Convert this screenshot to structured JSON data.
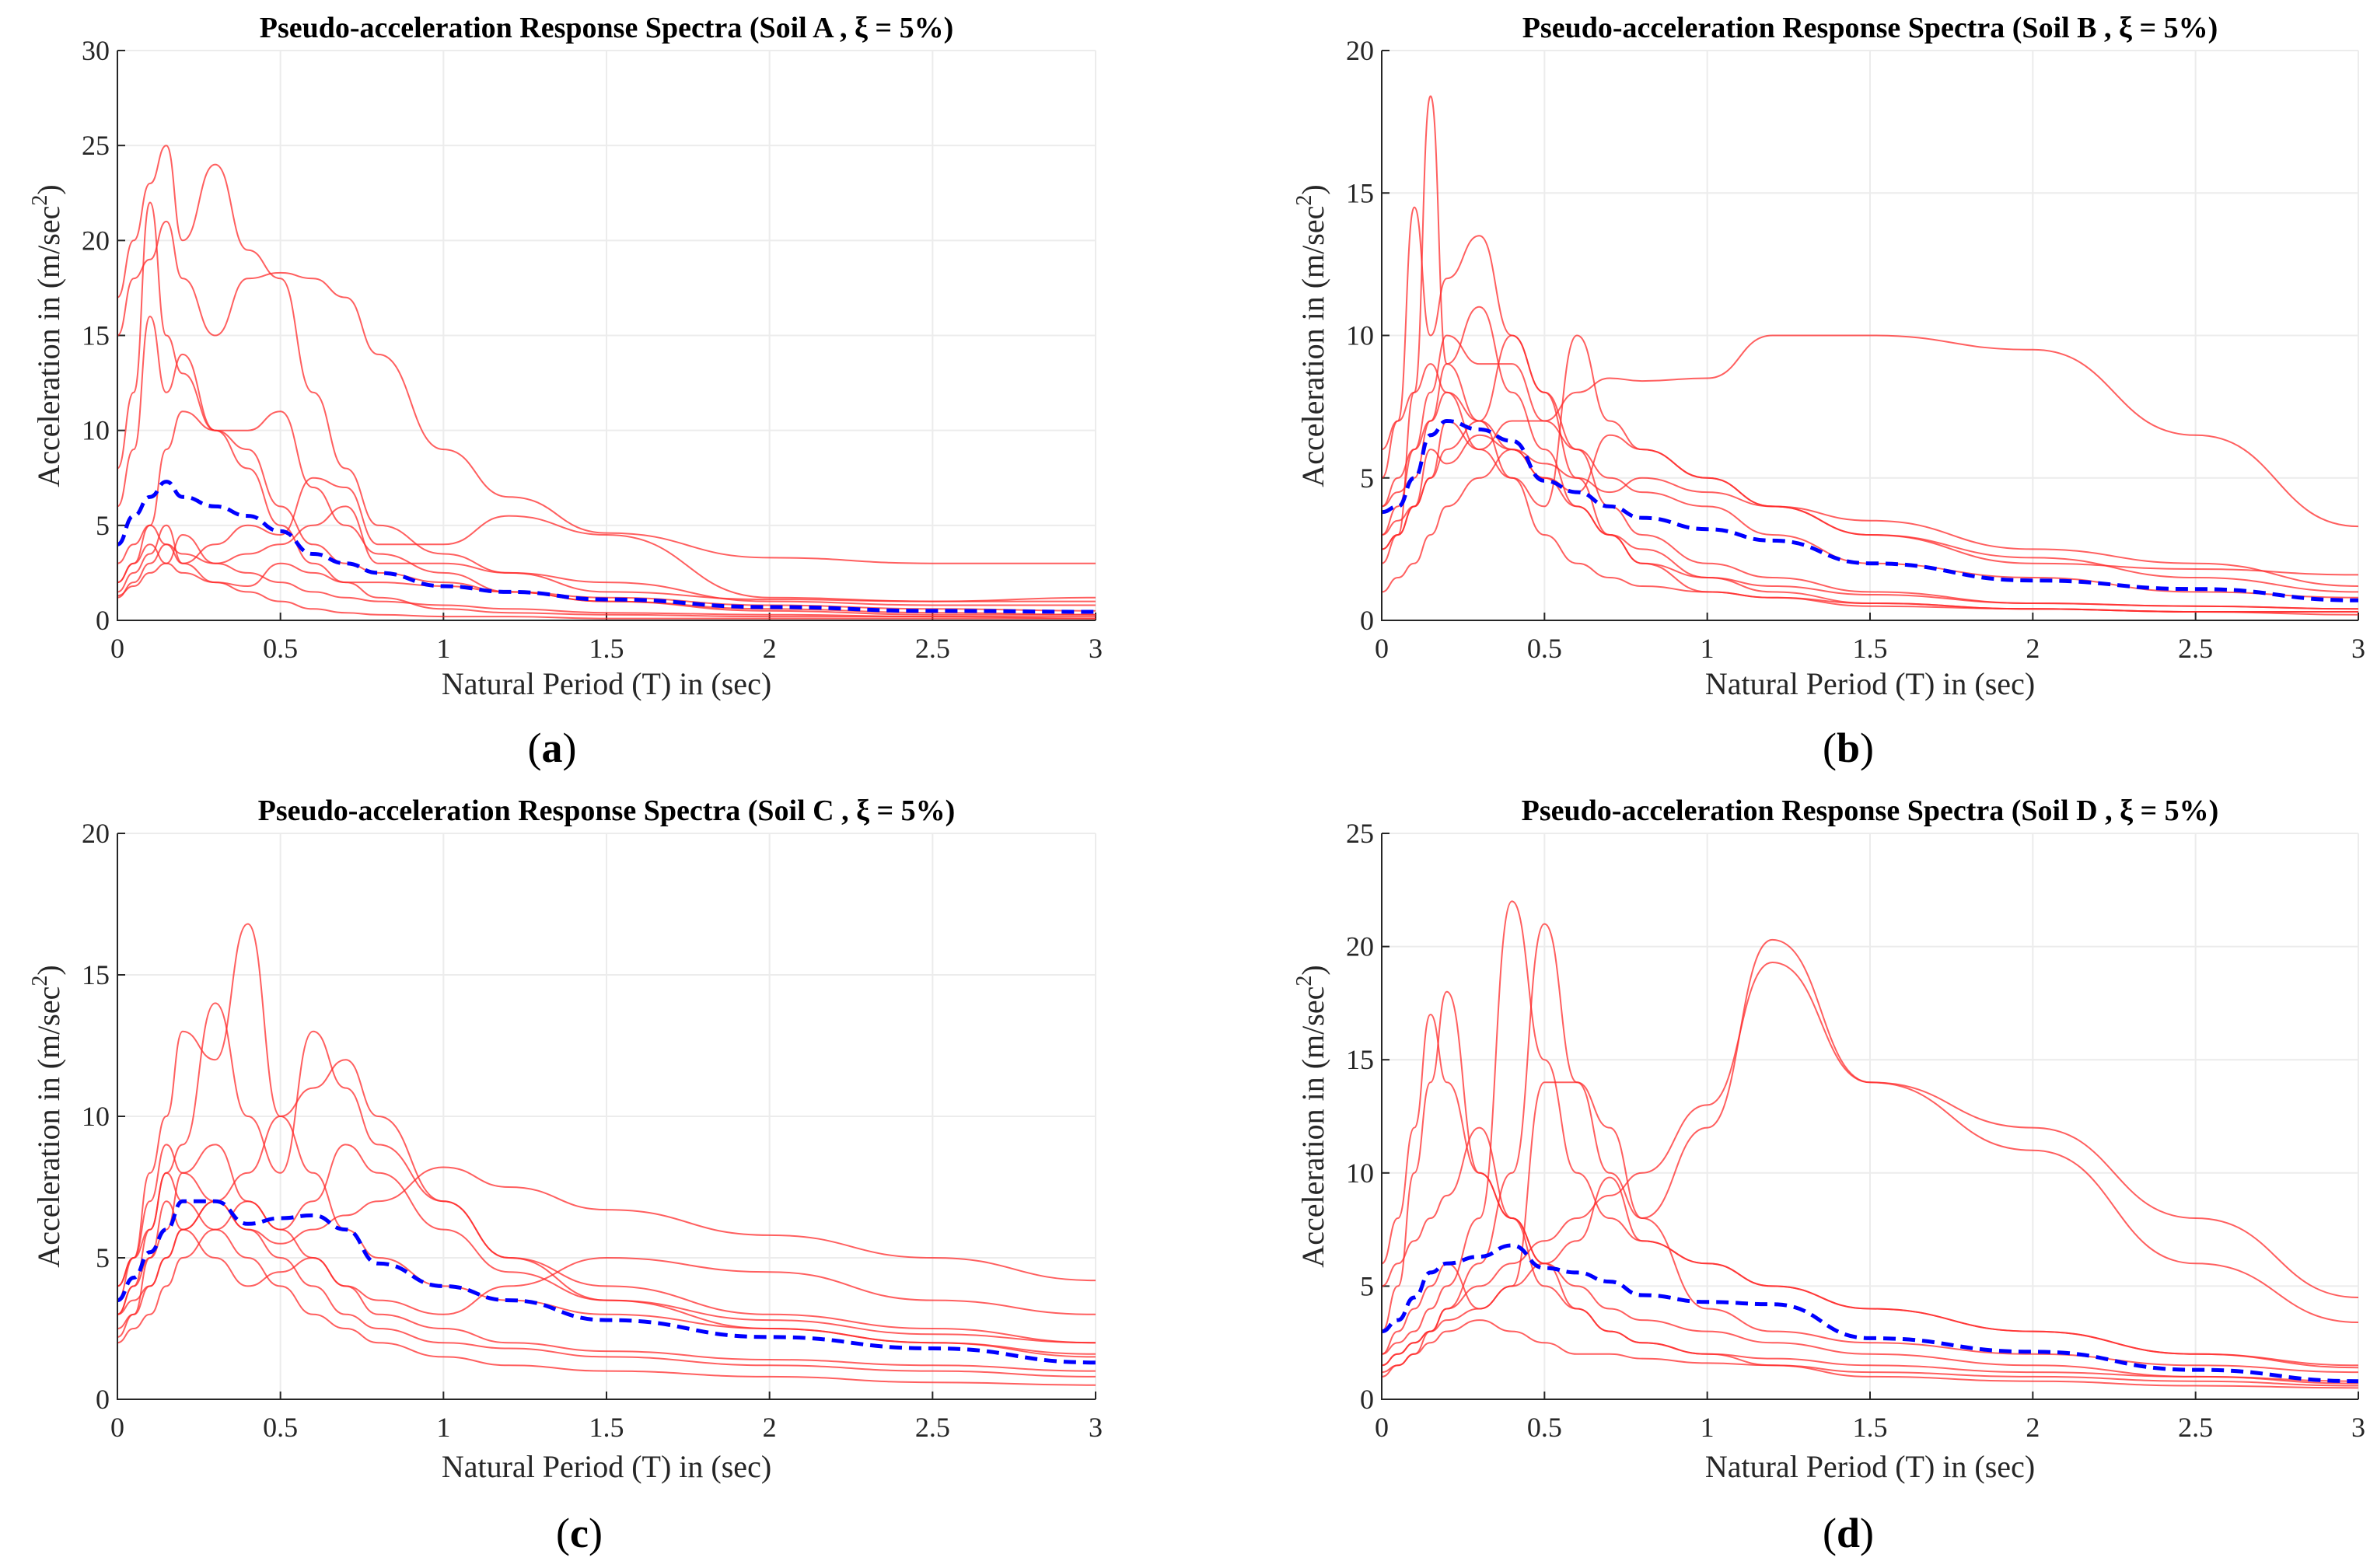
{
  "colors": {
    "records": "#ff2a2a",
    "mean": "#0000ff"
  },
  "chart_data": [
    {
      "type": "line",
      "panel_label_open": "(",
      "panel_label_letter": "a",
      "panel_label_close": ")",
      "title": "Pseudo-acceleration Response Spectra (Soil A , ξ = 5%)",
      "xlabel": "Natural Period (T) in (sec)",
      "ylabel_main": "Acceleration in (m/sec",
      "ylabel_sup": "2",
      "ylabel_end": ")",
      "xlim": [
        0,
        3
      ],
      "ylim": [
        0,
        30
      ],
      "xticks": [
        "0",
        "0.5",
        "1",
        "1.5",
        "2",
        "2.5",
        "3"
      ],
      "yticks": [
        "0",
        "5",
        "10",
        "15",
        "20",
        "25",
        "30"
      ],
      "grid": true,
      "x": [
        0,
        0.05,
        0.1,
        0.15,
        0.2,
        0.3,
        0.4,
        0.5,
        0.6,
        0.7,
        0.8,
        1,
        1.2,
        1.5,
        2,
        2.5,
        3
      ],
      "mean": [
        4,
        5.5,
        6.5,
        7.3,
        6.5,
        6,
        5.5,
        4.7,
        3.5,
        3,
        2.5,
        1.8,
        1.5,
        1.1,
        0.7,
        0.5,
        0.45
      ],
      "records": [
        [
          17,
          20,
          23,
          25,
          20,
          24,
          19.5,
          18,
          12,
          8,
          5,
          3.5,
          2.5,
          1.5,
          1.1,
          1,
          1
        ],
        [
          15,
          18,
          19,
          21,
          18,
          15,
          18,
          18.3,
          18,
          17,
          14,
          9,
          6.5,
          4.6,
          3.3,
          3.0,
          3.0
        ],
        [
          8,
          12,
          22,
          15,
          13,
          10,
          10,
          11,
          7,
          5,
          3.5,
          2.5,
          1.5,
          1,
          0.5,
          0.3,
          0.3
        ],
        [
          6,
          9,
          16,
          12,
          14,
          10,
          8,
          5,
          3,
          2,
          1.2,
          0.6,
          0.4,
          0.3,
          0.2,
          0.2,
          0.1
        ],
        [
          2,
          3,
          5,
          4,
          3,
          4,
          5,
          4.5,
          7.5,
          7,
          4,
          4,
          5.5,
          4.5,
          1.2,
          1,
          1.2
        ],
        [
          1.5,
          2.5,
          3.5,
          5,
          3,
          2,
          1.5,
          1,
          0.6,
          0.4,
          0.3,
          0.2,
          0.2,
          0.1,
          0.1,
          0.1,
          0.1
        ],
        [
          1.2,
          2,
          3,
          4,
          3.5,
          3,
          2.5,
          2,
          1.5,
          1.2,
          1,
          0.8,
          0.6,
          0.4,
          0.3,
          0.2,
          0.2
        ],
        [
          2,
          3,
          4,
          3,
          4.5,
          3,
          3.5,
          4,
          5,
          6,
          3,
          3,
          2.5,
          2,
          1,
          0.8,
          0.8
        ],
        [
          3,
          4,
          5,
          9,
          11,
          10,
          9,
          6,
          4,
          3,
          2.5,
          2,
          1.5,
          1,
          0.6,
          0.4,
          0.3
        ],
        [
          1.3,
          1.8,
          2.5,
          3,
          2.5,
          2,
          1.8,
          3,
          2.5,
          2,
          2,
          1.8,
          1.5,
          1.2,
          0.8,
          0.6,
          0.5
        ]
      ]
    },
    {
      "type": "line",
      "panel_label_open": "(",
      "panel_label_letter": "b",
      "panel_label_close": ")",
      "title": "Pseudo-acceleration Response Spectra (Soil B , ξ = 5%)",
      "xlabel": "Natural Period (T) in (sec)",
      "ylabel_main": "Acceleration in (m/sec",
      "ylabel_sup": "2",
      "ylabel_end": ")",
      "xlim": [
        0,
        3
      ],
      "ylim": [
        0,
        20
      ],
      "xticks": [
        "0",
        "0.5",
        "1",
        "1.5",
        "2",
        "2.5",
        "3"
      ],
      "yticks": [
        "0",
        "5",
        "10",
        "15",
        "20"
      ],
      "grid": true,
      "x": [
        0,
        0.05,
        0.1,
        0.15,
        0.2,
        0.3,
        0.4,
        0.5,
        0.6,
        0.7,
        0.8,
        1,
        1.2,
        1.5,
        2,
        2.5,
        3
      ],
      "mean": [
        3.8,
        4,
        5,
        6.5,
        7,
        6.7,
        6.3,
        4.9,
        4.5,
        4,
        3.6,
        3.2,
        2.8,
        2,
        1.4,
        1.1,
        0.7
      ],
      "records": [
        [
          2.5,
          3,
          8,
          18.4,
          9,
          7,
          6,
          5,
          4,
          3,
          2.5,
          1.5,
          1,
          0.6,
          0.4,
          0.3,
          0.3
        ],
        [
          5,
          7,
          14.5,
          10,
          12,
          13.5,
          10,
          8,
          6,
          4,
          3,
          2,
          1.5,
          1,
          0.6,
          0.5,
          0.4
        ],
        [
          3,
          4,
          6,
          7,
          8,
          6,
          7,
          7,
          8,
          8.5,
          8.4,
          8.5,
          10,
          10,
          9.5,
          6.5,
          3.3
        ],
        [
          4,
          5,
          6,
          8,
          10,
          9,
          9,
          7,
          6,
          5,
          4.5,
          4,
          3,
          2,
          1.5,
          1,
          0.8
        ],
        [
          2,
          3,
          4,
          5,
          6,
          7,
          10,
          8,
          5,
          3,
          2,
          1,
          0.8,
          0.5,
          0.4,
          0.3,
          0.3
        ],
        [
          1,
          1.5,
          2,
          3,
          4,
          5,
          6,
          5,
          4.5,
          6.5,
          6,
          5,
          4,
          3,
          2.2,
          1.5,
          1
        ],
        [
          3,
          3.5,
          4,
          5,
          7,
          6,
          5,
          4,
          10,
          7,
          6,
          5,
          4,
          3,
          2,
          1.8,
          1.6
        ],
        [
          6,
          7,
          8,
          9,
          8,
          7,
          5,
          3,
          2,
          1.5,
          1.2,
          1,
          0.8,
          0.6,
          0.4,
          0.3,
          0.2
        ],
        [
          2.5,
          3,
          4,
          6,
          5.5,
          6.5,
          6,
          5.5,
          5,
          4.5,
          5,
          4.5,
          4,
          3.5,
          2.5,
          2,
          1.2
        ],
        [
          4,
          4.5,
          5,
          7,
          9,
          11,
          8,
          6,
          4,
          3,
          2,
          1.5,
          1.2,
          0.9,
          0.6,
          0.5,
          0.4
        ]
      ]
    },
    {
      "type": "line",
      "panel_label_open": "(",
      "panel_label_letter": "c",
      "panel_label_close": ")",
      "title": "Pseudo-acceleration Response Spectra (Soil C , ξ = 5%)",
      "xlabel": "Natural Period (T) in (sec)",
      "ylabel_main": "Acceleration in (m/sec",
      "ylabel_sup": "2",
      "ylabel_end": ")",
      "xlim": [
        0,
        3
      ],
      "ylim": [
        0,
        20
      ],
      "xticks": [
        "0",
        "0.5",
        "1",
        "1.5",
        "2",
        "2.5",
        "3"
      ],
      "yticks": [
        "0",
        "5",
        "10",
        "15",
        "20"
      ],
      "grid": true,
      "x": [
        0,
        0.05,
        0.1,
        0.15,
        0.2,
        0.3,
        0.4,
        0.5,
        0.6,
        0.7,
        0.8,
        1,
        1.2,
        1.5,
        2,
        2.5,
        3
      ],
      "mean": [
        3.5,
        4.3,
        5.2,
        6,
        7,
        7,
        6.2,
        6.4,
        6.5,
        6,
        4.8,
        4,
        3.5,
        2.8,
        2.2,
        1.8,
        1.3
      ],
      "records": [
        [
          3.5,
          5,
          8,
          10,
          13,
          12,
          16.8,
          10,
          8,
          6,
          5,
          4,
          3.5,
          3,
          2.5,
          2,
          1.5
        ],
        [
          3,
          4,
          6,
          8,
          9,
          14,
          10,
          8,
          13,
          11,
          9,
          7,
          5,
          3.5,
          2.5,
          2,
          1.6
        ],
        [
          2.5,
          3,
          4,
          5,
          6,
          7,
          8,
          10,
          11,
          12,
          10,
          7,
          5,
          4,
          3,
          2.5,
          2
        ],
        [
          4,
          5,
          6,
          8,
          7,
          6,
          5,
          4,
          3,
          2.5,
          2,
          1.5,
          1.2,
          1,
          0.8,
          0.6,
          0.5
        ],
        [
          3,
          3.5,
          4,
          5,
          6,
          7,
          6,
          5.5,
          6,
          6.5,
          7,
          8.2,
          7.5,
          6.7,
          5.8,
          5,
          4.2
        ],
        [
          2,
          2.5,
          3,
          4,
          5,
          6,
          7,
          6,
          5,
          4,
          3.5,
          3,
          4,
          5,
          4.5,
          3.5,
          3
        ],
        [
          4,
          5,
          7,
          9,
          8,
          7,
          6,
          5,
          4,
          3,
          2.5,
          2,
          1.8,
          1.5,
          1.2,
          1,
          0.8
        ],
        [
          2.2,
          3,
          5,
          7,
          6,
          5,
          4,
          4.5,
          5,
          4,
          3,
          2.5,
          2,
          1.7,
          1.4,
          1.2,
          1
        ],
        [
          3,
          4,
          5,
          6,
          8,
          9,
          7,
          6,
          7,
          9,
          8,
          6,
          4.5,
          3.5,
          2.8,
          2.3,
          2
        ]
      ]
    },
    {
      "type": "line",
      "panel_label_open": "(",
      "panel_label_letter": "d",
      "panel_label_close": ")",
      "title": "Pseudo-acceleration Response Spectra (Soil D , ξ = 5%)",
      "xlabel": "Natural Period (T) in (sec)",
      "ylabel_main": "Acceleration in (m/sec",
      "ylabel_sup": "2",
      "ylabel_end": ")",
      "xlim": [
        0,
        3
      ],
      "ylim": [
        0,
        25
      ],
      "xticks": [
        "0",
        "0.5",
        "1",
        "1.5",
        "2",
        "2.5",
        "3"
      ],
      "yticks": [
        "0",
        "5",
        "10",
        "15",
        "20",
        "25"
      ],
      "grid": true,
      "x": [
        0,
        0.05,
        0.1,
        0.15,
        0.2,
        0.3,
        0.4,
        0.5,
        0.6,
        0.7,
        0.8,
        1,
        1.2,
        1.5,
        2,
        2.5,
        3
      ],
      "mean": [
        3,
        3.5,
        4.5,
        5.6,
        6,
        6.3,
        6.8,
        5.8,
        5.6,
        5.2,
        4.6,
        4.3,
        4.2,
        2.7,
        2.1,
        1.3,
        0.8
      ],
      "records": [
        [
          2,
          2.5,
          3,
          4,
          5,
          8,
          22,
          15,
          10,
          8,
          7,
          6,
          5,
          4,
          3,
          2,
          1.5
        ],
        [
          1.5,
          2,
          2.5,
          3,
          4,
          6,
          10,
          21,
          14,
          10,
          8,
          12,
          20.3,
          14,
          11,
          6,
          3.4
        ],
        [
          6,
          8,
          12,
          17,
          14,
          10,
          8,
          6,
          5,
          4,
          3.5,
          3,
          2.5,
          2,
          1.5,
          1,
          0.7
        ],
        [
          1,
          1.5,
          2,
          3,
          4,
          5,
          6,
          7,
          8,
          9,
          10,
          13,
          19.3,
          14,
          12,
          8,
          4.5
        ],
        [
          3,
          5,
          10,
          14,
          18,
          10,
          8,
          6,
          4,
          3,
          2.5,
          2,
          1.5,
          1,
          0.8,
          0.6,
          0.5
        ],
        [
          2,
          3,
          4,
          5,
          6,
          4,
          5,
          14,
          14,
          12,
          8,
          4,
          3,
          2.5,
          2,
          1.5,
          1.2
        ],
        [
          1.2,
          1.5,
          2,
          2.5,
          3,
          3.5,
          3,
          2.5,
          2,
          2,
          1.8,
          1.6,
          1.5,
          1.2,
          1,
          0.8,
          0.6
        ],
        [
          5,
          6,
          7,
          8,
          9,
          12,
          8,
          5,
          4,
          3,
          2.5,
          2,
          1.8,
          1.5,
          1.2,
          1,
          0.8
        ],
        [
          1.5,
          2,
          2.5,
          3,
          3.5,
          4,
          5,
          6,
          7,
          9.8,
          7,
          6,
          5,
          4,
          3,
          2,
          1.4
        ]
      ]
    }
  ]
}
